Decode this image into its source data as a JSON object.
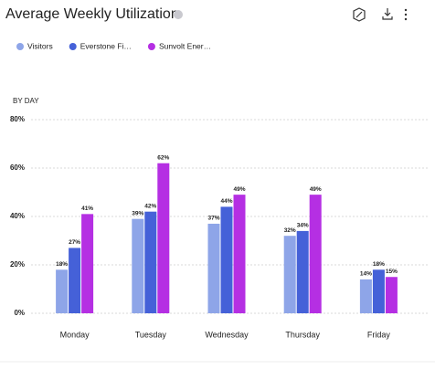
{
  "chart_data": {
    "type": "bar",
    "title": "Average Weekly Utilization",
    "subtitle": "BY DAY",
    "categories": [
      "Monday",
      "Tuesday",
      "Wednesday",
      "Thursday",
      "Friday"
    ],
    "series": [
      {
        "name": "Visitors",
        "color": "#8ea5e8",
        "values": [
          18,
          39,
          37,
          32,
          14
        ],
        "value_labels": [
          "18%",
          "39%",
          "37%",
          "32%",
          "14%"
        ]
      },
      {
        "name": "Everstone Fi…",
        "color": "#4561d8",
        "values": [
          27,
          42,
          44,
          34,
          18
        ],
        "value_labels": [
          "27%",
          "42%",
          "44%",
          "34%",
          "18%"
        ]
      },
      {
        "name": "Sunvolt Ener…",
        "color": "#b52fe3",
        "values": [
          41,
          62,
          49,
          49,
          15
        ],
        "value_labels": [
          "41%",
          "62%",
          "49%",
          "49%",
          "15%"
        ]
      }
    ],
    "ylim": [
      0,
      80
    ],
    "yticks": [
      {
        "value": 0,
        "label": "0%"
      },
      {
        "value": 20,
        "label": "20%"
      },
      {
        "value": 40,
        "label": "40%"
      },
      {
        "value": 60,
        "label": "60%"
      },
      {
        "value": 80,
        "label": "80%"
      }
    ],
    "grid": true
  }
}
